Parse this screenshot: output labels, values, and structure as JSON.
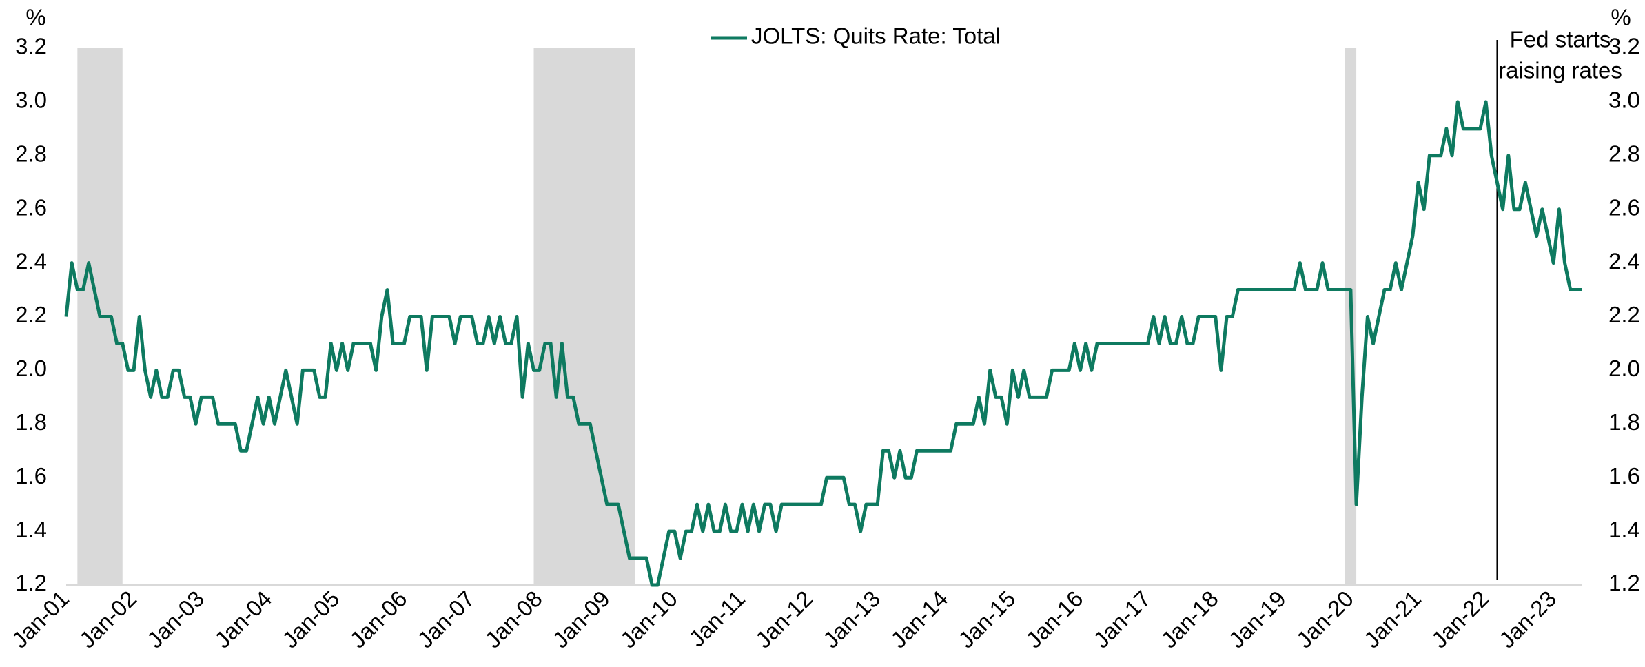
{
  "chart_data": {
    "type": "line",
    "y_unit": "%",
    "y2_unit": "%",
    "categories": [
      "Jan-01",
      null,
      null,
      null,
      null,
      null,
      null,
      null,
      null,
      null,
      null,
      null,
      "Jan-02",
      null,
      null,
      null,
      null,
      null,
      null,
      null,
      null,
      null,
      null,
      null,
      "Jan-03",
      null,
      null,
      null,
      null,
      null,
      null,
      null,
      null,
      null,
      null,
      null,
      "Jan-04",
      null,
      null,
      null,
      null,
      null,
      null,
      null,
      null,
      null,
      null,
      null,
      "Jan-05",
      null,
      null,
      null,
      null,
      null,
      null,
      null,
      null,
      null,
      null,
      null,
      "Jan-06",
      null,
      null,
      null,
      null,
      null,
      null,
      null,
      null,
      null,
      null,
      null,
      "Jan-07",
      null,
      null,
      null,
      null,
      null,
      null,
      null,
      null,
      null,
      null,
      null,
      "Jan-08",
      null,
      null,
      null,
      null,
      null,
      null,
      null,
      null,
      null,
      null,
      null,
      "Jan-09",
      null,
      null,
      null,
      null,
      null,
      null,
      null,
      null,
      null,
      null,
      null,
      "Jan-10",
      null,
      null,
      null,
      null,
      null,
      null,
      null,
      null,
      null,
      null,
      null,
      "Jan-11",
      null,
      null,
      null,
      null,
      null,
      null,
      null,
      null,
      null,
      null,
      null,
      "Jan-12",
      null,
      null,
      null,
      null,
      null,
      null,
      null,
      null,
      null,
      null,
      null,
      "Jan-13",
      null,
      null,
      null,
      null,
      null,
      null,
      null,
      null,
      null,
      null,
      null,
      "Jan-14",
      null,
      null,
      null,
      null,
      null,
      null,
      null,
      null,
      null,
      null,
      null,
      "Jan-15",
      null,
      null,
      null,
      null,
      null,
      null,
      null,
      null,
      null,
      null,
      null,
      "Jan-16",
      null,
      null,
      null,
      null,
      null,
      null,
      null,
      null,
      null,
      null,
      null,
      "Jan-17",
      null,
      null,
      null,
      null,
      null,
      null,
      null,
      null,
      null,
      null,
      null,
      "Jan-18",
      null,
      null,
      null,
      null,
      null,
      null,
      null,
      null,
      null,
      null,
      null,
      "Jan-19",
      null,
      null,
      null,
      null,
      null,
      null,
      null,
      null,
      null,
      null,
      null,
      "Jan-20",
      null,
      null,
      null,
      null,
      null,
      null,
      null,
      null,
      null,
      null,
      null,
      "Jan-21",
      null,
      null,
      null,
      null,
      null,
      null,
      null,
      null,
      null,
      null,
      null,
      "Jan-22",
      null,
      null,
      null,
      null,
      null,
      null,
      null,
      null,
      null,
      null,
      null,
      "Jan-23",
      null,
      null,
      null,
      null,
      null
    ],
    "series": [
      {
        "name": "JOLTS: Quits Rate: Total",
        "color": "#0e7a60",
        "values": [
          2.2,
          2.4,
          2.3,
          2.3,
          2.4,
          2.3,
          2.2,
          2.2,
          2.2,
          2.1,
          2.1,
          2.0,
          2.0,
          2.2,
          2.0,
          1.9,
          2.0,
          1.9,
          1.9,
          2.0,
          2.0,
          1.9,
          1.9,
          1.8,
          1.9,
          1.9,
          1.9,
          1.8,
          1.8,
          1.8,
          1.8,
          1.7,
          1.7,
          1.8,
          1.9,
          1.8,
          1.9,
          1.8,
          1.9,
          2.0,
          1.9,
          1.8,
          2.0,
          2.0,
          2.0,
          1.9,
          1.9,
          2.1,
          2.0,
          2.1,
          2.0,
          2.1,
          2.1,
          2.1,
          2.1,
          2.0,
          2.2,
          2.3,
          2.1,
          2.1,
          2.1,
          2.2,
          2.2,
          2.2,
          2.0,
          2.2,
          2.2,
          2.2,
          2.2,
          2.1,
          2.2,
          2.2,
          2.2,
          2.1,
          2.1,
          2.2,
          2.1,
          2.2,
          2.1,
          2.1,
          2.2,
          1.9,
          2.1,
          2.0,
          2.0,
          2.1,
          2.1,
          1.9,
          2.1,
          1.9,
          1.9,
          1.8,
          1.8,
          1.8,
          1.7,
          1.6,
          1.5,
          1.5,
          1.5,
          1.4,
          1.3,
          1.3,
          1.3,
          1.3,
          1.2,
          1.2,
          1.3,
          1.4,
          1.4,
          1.3,
          1.4,
          1.4,
          1.5,
          1.4,
          1.5,
          1.4,
          1.4,
          1.5,
          1.4,
          1.4,
          1.5,
          1.4,
          1.5,
          1.4,
          1.5,
          1.5,
          1.4,
          1.5,
          1.5,
          1.5,
          1.5,
          1.5,
          1.5,
          1.5,
          1.5,
          1.6,
          1.6,
          1.6,
          1.6,
          1.5,
          1.5,
          1.4,
          1.5,
          1.5,
          1.5,
          1.7,
          1.7,
          1.6,
          1.7,
          1.6,
          1.6,
          1.7,
          1.7,
          1.7,
          1.7,
          1.7,
          1.7,
          1.7,
          1.8,
          1.8,
          1.8,
          1.8,
          1.9,
          1.8,
          2.0,
          1.9,
          1.9,
          1.8,
          2.0,
          1.9,
          2.0,
          1.9,
          1.9,
          1.9,
          1.9,
          2.0,
          2.0,
          2.0,
          2.0,
          2.1,
          2.0,
          2.1,
          2.0,
          2.1,
          2.1,
          2.1,
          2.1,
          2.1,
          2.1,
          2.1,
          2.1,
          2.1,
          2.1,
          2.2,
          2.1,
          2.2,
          2.1,
          2.1,
          2.2,
          2.1,
          2.1,
          2.2,
          2.2,
          2.2,
          2.2,
          2.0,
          2.2,
          2.2,
          2.3,
          2.3,
          2.3,
          2.3,
          2.3,
          2.3,
          2.3,
          2.3,
          2.3,
          2.3,
          2.3,
          2.4,
          2.3,
          2.3,
          2.3,
          2.4,
          2.3,
          2.3,
          2.3,
          2.3,
          2.3,
          1.5,
          1.9,
          2.2,
          2.1,
          2.2,
          2.3,
          2.3,
          2.4,
          2.3,
          2.4,
          2.5,
          2.7,
          2.6,
          2.8,
          2.8,
          2.8,
          2.9,
          2.8,
          3.0,
          2.9,
          2.9,
          2.9,
          2.9,
          3.0,
          2.8,
          2.7,
          2.6,
          2.8,
          2.6,
          2.6,
          2.7,
          2.6,
          2.5,
          2.6,
          2.5,
          2.4,
          2.6,
          2.4,
          2.3,
          2.3,
          2.3
        ]
      }
    ],
    "ylim": [
      1.2,
      3.2
    ],
    "yticks": [
      1.2,
      1.4,
      1.6,
      1.8,
      {
        "value": 2,
        "label": "2.0"
      },
      2.2,
      2.4,
      2.6,
      2.8,
      {
        "value": 3,
        "label": "3.0"
      },
      3.2
    ],
    "y2lim": [
      1.2,
      3.2
    ],
    "y2ticks": [
      1.2,
      1.4,
      1.6,
      1.8,
      {
        "value": 2,
        "label": "2.0"
      },
      2.2,
      2.4,
      2.6,
      2.8,
      {
        "value": 3,
        "label": "3.0"
      },
      3.2
    ],
    "grid": false,
    "legend": "top",
    "shaded_periods": [
      {
        "start": 2,
        "end": 10
      },
      {
        "start": 83,
        "end": 101
      },
      {
        "start": 227,
        "end": 229
      }
    ],
    "shade_color": "#d9d9d9",
    "annotation": {
      "lines": [
        "Fed starts",
        "raising rates"
      ],
      "index": 254
    }
  }
}
